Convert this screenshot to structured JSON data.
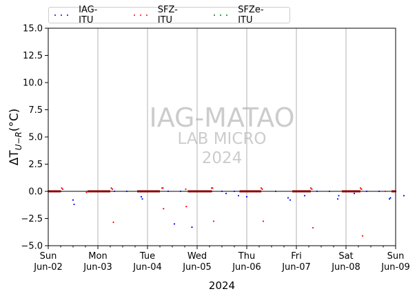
{
  "chart_data": {
    "type": "scatter",
    "title": "",
    "xlabel": "2024",
    "ylabel": "ΔT_{U−R}(°C)",
    "ylim": [
      -5.0,
      15.0
    ],
    "yticks": [
      "15.0",
      "12.5",
      "10.0",
      "7.5",
      "5.0",
      "2.5",
      "0.0",
      "−2.5",
      "−5.0"
    ],
    "ytick_values": [
      15.0,
      12.5,
      10.0,
      7.5,
      5.0,
      2.5,
      0.0,
      -2.5,
      -5.0
    ],
    "xlim": [
      "2024-06-02",
      "2024-06-09"
    ],
    "xticks": [
      {
        "day": "Sun",
        "date": "Jun-02"
      },
      {
        "day": "Mon",
        "date": "Jun-03"
      },
      {
        "day": "Tue",
        "date": "Jun-04"
      },
      {
        "day": "Wed",
        "date": "Jun-05"
      },
      {
        "day": "Thu",
        "date": "Jun-06"
      },
      {
        "day": "Fri",
        "date": "Jun-07"
      },
      {
        "day": "Sat",
        "date": "Jun-08"
      },
      {
        "day": "Sun",
        "date": "Jun-09"
      }
    ],
    "grid": "vertical",
    "legend_position": "top-left",
    "watermark": {
      "line1": "IAG-MATAO",
      "line2": "LAB MICRO",
      "line3": "2024"
    },
    "series": [
      {
        "name": "IAG-ITU",
        "color": "#0000ff",
        "points": [
          [
            "2024-06-02 00:00",
            0.0
          ],
          [
            "2024-06-02 03:00",
            0.0
          ],
          [
            "2024-06-02 06:00",
            0.0
          ],
          [
            "2024-06-02 12:00",
            -0.8
          ],
          [
            "2024-06-02 12:30",
            -1.2
          ],
          [
            "2024-06-03 08:00",
            0.0
          ],
          [
            "2024-06-03 14:00",
            0.0
          ],
          [
            "2024-06-03 21:00",
            -0.5
          ],
          [
            "2024-06-03 21:30",
            -0.7
          ],
          [
            "2024-06-04 04:00",
            0.0
          ],
          [
            "2024-06-04 10:00",
            0.0
          ],
          [
            "2024-06-04 16:00",
            0.0
          ],
          [
            "2024-06-04 21:30",
            -3.3
          ],
          [
            "2024-06-05 07:00",
            0.0
          ],
          [
            "2024-06-05 12:00",
            0.0
          ],
          [
            "2024-06-05 18:00",
            0.0
          ],
          [
            "2024-06-04 13:00",
            -3.0
          ],
          [
            "2024-06-05 20:00",
            -0.4
          ],
          [
            "2024-06-05 14:00",
            -0.2
          ],
          [
            "2024-06-06 00:00",
            -0.5
          ],
          [
            "2024-06-06 06:00",
            0.0
          ],
          [
            "2024-06-06 14:00",
            0.0
          ],
          [
            "2024-06-06 20:00",
            -0.6
          ],
          [
            "2024-06-06 21:00",
            -0.8
          ],
          [
            "2024-06-07 04:00",
            -0.4
          ],
          [
            "2024-06-07 10:00",
            0.0
          ],
          [
            "2024-06-07 16:00",
            0.0
          ],
          [
            "2024-06-07 20:00",
            -0.7
          ],
          [
            "2024-06-07 20:30",
            -0.4
          ],
          [
            "2024-06-08 04:00",
            -0.2
          ],
          [
            "2024-06-08 10:00",
            0.0
          ],
          [
            "2024-06-08 16:00",
            0.0
          ],
          [
            "2024-06-08 21:00",
            -0.7
          ],
          [
            "2024-06-08 21:30",
            -0.6
          ],
          [
            "2024-06-09 00:00",
            0.0
          ],
          [
            "2024-06-09 04:00",
            -0.4
          ]
        ]
      },
      {
        "name": "SFZ-ITU",
        "color": "#ff0000",
        "points": [
          [
            "2024-06-02 06:30",
            0.3
          ],
          [
            "2024-06-02 07:00",
            0.2
          ],
          [
            "2024-06-02 18:30",
            -0.1
          ],
          [
            "2024-06-03 06:30",
            0.3
          ],
          [
            "2024-06-03 07:00",
            0.2
          ],
          [
            "2024-06-03 07:30",
            -2.85
          ],
          [
            "2024-06-04 07:00",
            0.3
          ],
          [
            "2024-06-04 07:30",
            0.3
          ],
          [
            "2024-06-04 07:45",
            -1.6
          ],
          [
            "2024-06-05 07:00",
            0.3
          ],
          [
            "2024-06-05 07:30",
            0.3
          ],
          [
            "2024-06-04 18:30",
            0.2
          ],
          [
            "2024-06-04 18:45",
            -1.4
          ],
          [
            "2024-06-05 08:00",
            -2.75
          ],
          [
            "2024-06-06 07:00",
            0.3
          ],
          [
            "2024-06-06 07:30",
            0.2
          ],
          [
            "2024-06-06 08:00",
            -2.75
          ],
          [
            "2024-06-07 07:00",
            0.3
          ],
          [
            "2024-06-07 07:30",
            0.2
          ],
          [
            "2024-06-07 08:00",
            -3.35
          ],
          [
            "2024-06-08 07:00",
            0.3
          ],
          [
            "2024-06-08 07:30",
            0.2
          ],
          [
            "2024-06-08 08:00",
            -4.1
          ],
          [
            "2024-06-08 19:00",
            0.0
          ]
        ]
      },
      {
        "name": "SFZe-ITU",
        "color": "#008000",
        "points": []
      }
    ]
  }
}
